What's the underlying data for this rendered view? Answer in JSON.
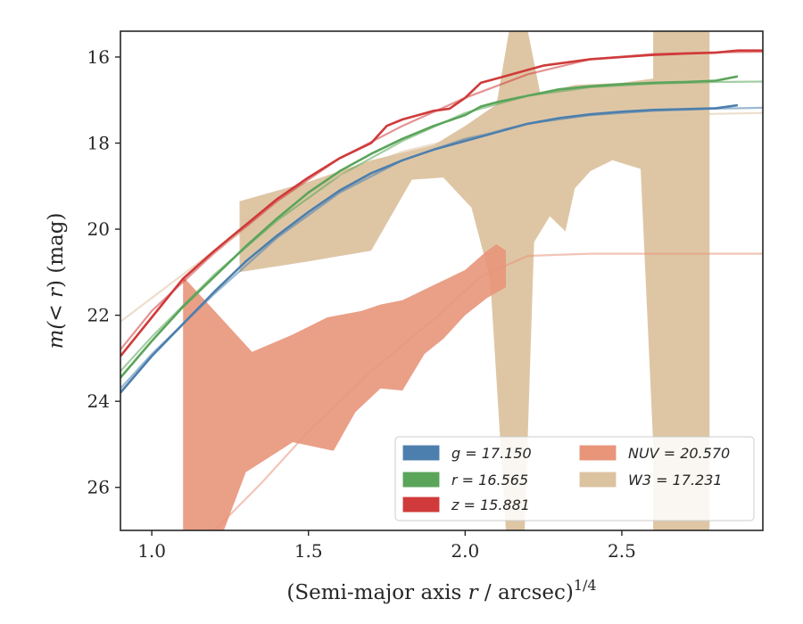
{
  "chart_data": {
    "type": "line",
    "xlabel": "(Semi-major axis r / arcsec)",
    "xlabel_math": "r",
    "xlabel_pre": "(Semi-major axis ",
    "xlabel_post": " / arcsec)",
    "xlabel_sup": "1/4",
    "ylabel_pre": "m(",
    "ylabel_math": "< r",
    "ylabel_post": ") (mag)",
    "xlim": [
      0.9,
      2.95
    ],
    "ylim": [
      27.0,
      15.4
    ],
    "y_inverted": true,
    "x_ticks": [
      "1.0",
      "1.5",
      "2.0",
      "2.5"
    ],
    "x_tick_values": [
      1.0,
      1.5,
      2.0,
      2.5
    ],
    "y_ticks": [
      "16",
      "18",
      "20",
      "22",
      "24",
      "26"
    ],
    "y_tick_values": [
      16,
      18,
      20,
      22,
      24,
      26
    ],
    "grid": false,
    "legend_position": "lower-right",
    "legend": [
      {
        "band": "g",
        "label": "g = 17.150",
        "color": "#4c7fad"
      },
      {
        "band": "r",
        "label": "r = 16.565",
        "color": "#5aa55a"
      },
      {
        "band": "z",
        "label": "z = 15.881",
        "color": "#d03a3a"
      },
      {
        "band": "NUV",
        "label": "NUV = 20.570",
        "color": "#e8957a"
      },
      {
        "band": "W3",
        "label": "W3 = 17.231",
        "color": "#dcc3a0"
      }
    ],
    "series": [
      {
        "name": "g = 17.150",
        "band": "g",
        "color": "#4c7fad",
        "observed": [
          [
            0.9,
            23.8
          ],
          [
            1.0,
            22.95
          ],
          [
            1.1,
            22.2
          ],
          [
            1.2,
            21.45
          ],
          [
            1.3,
            20.75
          ],
          [
            1.4,
            20.15
          ],
          [
            1.5,
            19.6
          ],
          [
            1.6,
            19.1
          ],
          [
            1.7,
            18.7
          ],
          [
            1.8,
            18.4
          ],
          [
            1.9,
            18.15
          ],
          [
            2.0,
            17.95
          ],
          [
            2.1,
            17.75
          ],
          [
            2.2,
            17.55
          ],
          [
            2.3,
            17.42
          ],
          [
            2.4,
            17.33
          ],
          [
            2.5,
            17.27
          ],
          [
            2.6,
            17.23
          ],
          [
            2.7,
            17.21
          ],
          [
            2.8,
            17.19
          ],
          [
            2.87,
            17.12
          ]
        ],
        "model": [
          [
            0.9,
            23.7
          ],
          [
            1.0,
            22.9
          ],
          [
            1.2,
            21.5
          ],
          [
            1.4,
            20.2
          ],
          [
            1.6,
            19.15
          ],
          [
            1.8,
            18.4
          ],
          [
            2.0,
            17.9
          ],
          [
            2.2,
            17.55
          ],
          [
            2.4,
            17.35
          ],
          [
            2.6,
            17.25
          ],
          [
            2.8,
            17.2
          ],
          [
            2.95,
            17.18
          ]
        ]
      },
      {
        "name": "r = 16.565",
        "band": "r",
        "color": "#5aa55a",
        "observed": [
          [
            0.9,
            23.45
          ],
          [
            1.0,
            22.6
          ],
          [
            1.1,
            21.8
          ],
          [
            1.2,
            21.1
          ],
          [
            1.3,
            20.4
          ],
          [
            1.4,
            19.75
          ],
          [
            1.5,
            19.15
          ],
          [
            1.6,
            18.65
          ],
          [
            1.7,
            18.25
          ],
          [
            1.8,
            17.9
          ],
          [
            1.9,
            17.6
          ],
          [
            2.0,
            17.35
          ],
          [
            2.05,
            17.15
          ],
          [
            2.1,
            17.05
          ],
          [
            2.2,
            16.9
          ],
          [
            2.3,
            16.75
          ],
          [
            2.4,
            16.68
          ],
          [
            2.5,
            16.63
          ],
          [
            2.6,
            16.6
          ],
          [
            2.7,
            16.58
          ],
          [
            2.8,
            16.55
          ],
          [
            2.87,
            16.45
          ]
        ],
        "model": [
          [
            0.9,
            23.3
          ],
          [
            1.0,
            22.5
          ],
          [
            1.2,
            21.05
          ],
          [
            1.4,
            19.8
          ],
          [
            1.6,
            18.75
          ],
          [
            1.8,
            17.95
          ],
          [
            2.0,
            17.3
          ],
          [
            2.2,
            16.9
          ],
          [
            2.4,
            16.7
          ],
          [
            2.6,
            16.62
          ],
          [
            2.8,
            16.58
          ],
          [
            2.95,
            16.57
          ]
        ]
      },
      {
        "name": "z = 15.881",
        "band": "z",
        "color": "#d03a3a",
        "observed": [
          [
            0.9,
            22.95
          ],
          [
            1.0,
            22.05
          ],
          [
            1.1,
            21.15
          ],
          [
            1.2,
            20.5
          ],
          [
            1.3,
            19.9
          ],
          [
            1.4,
            19.3
          ],
          [
            1.5,
            18.8
          ],
          [
            1.6,
            18.35
          ],
          [
            1.7,
            18.0
          ],
          [
            1.75,
            17.6
          ],
          [
            1.8,
            17.45
          ],
          [
            1.9,
            17.25
          ],
          [
            1.95,
            17.2
          ],
          [
            2.0,
            16.95
          ],
          [
            2.05,
            16.6
          ],
          [
            2.1,
            16.5
          ],
          [
            2.2,
            16.3
          ],
          [
            2.25,
            16.2
          ],
          [
            2.3,
            16.15
          ],
          [
            2.4,
            16.05
          ],
          [
            2.5,
            16.0
          ],
          [
            2.6,
            15.95
          ],
          [
            2.7,
            15.92
          ],
          [
            2.8,
            15.9
          ],
          [
            2.87,
            15.85
          ],
          [
            2.95,
            15.85
          ]
        ],
        "model": [
          [
            0.9,
            22.8
          ],
          [
            1.0,
            21.9
          ],
          [
            1.2,
            20.55
          ],
          [
            1.4,
            19.35
          ],
          [
            1.6,
            18.35
          ],
          [
            1.8,
            17.6
          ],
          [
            2.0,
            16.95
          ],
          [
            2.2,
            16.4
          ],
          [
            2.4,
            16.05
          ],
          [
            2.6,
            15.93
          ],
          [
            2.8,
            15.89
          ],
          [
            2.95,
            15.88
          ]
        ]
      },
      {
        "name": "NUV = 20.570",
        "band": "NUV",
        "color": "#e8957a",
        "band_upper": [
          [
            1.1,
            21.1
          ],
          [
            1.32,
            22.85
          ],
          [
            1.45,
            22.45
          ],
          [
            1.56,
            22.05
          ],
          [
            1.67,
            21.9
          ],
          [
            1.73,
            21.75
          ],
          [
            1.8,
            21.65
          ],
          [
            1.9,
            21.3
          ],
          [
            2.0,
            20.95
          ],
          [
            2.07,
            20.5
          ],
          [
            2.1,
            20.35
          ],
          [
            2.13,
            20.5
          ]
        ],
        "band_lower": [
          [
            2.13,
            21.35
          ],
          [
            2.07,
            21.6
          ],
          [
            2.0,
            22.0
          ],
          [
            1.93,
            22.55
          ],
          [
            1.87,
            22.9
          ],
          [
            1.8,
            23.75
          ],
          [
            1.73,
            23.7
          ],
          [
            1.65,
            24.25
          ],
          [
            1.58,
            25.15
          ],
          [
            1.45,
            24.95
          ],
          [
            1.3,
            25.65
          ],
          [
            1.23,
            27.0
          ],
          [
            1.1,
            27.0
          ]
        ],
        "model": [
          [
            1.2,
            27.0
          ],
          [
            1.35,
            25.9
          ],
          [
            1.5,
            24.7
          ],
          [
            1.7,
            23.3
          ],
          [
            1.9,
            22.1
          ],
          [
            2.05,
            21.1
          ],
          [
            2.2,
            20.62
          ],
          [
            2.4,
            20.57
          ],
          [
            2.95,
            20.57
          ]
        ]
      },
      {
        "name": "W3 = 17.231",
        "band": "W3",
        "color": "#dcc3a0",
        "band_upper": [
          [
            1.28,
            19.35
          ],
          [
            1.5,
            18.9
          ],
          [
            1.7,
            18.4
          ],
          [
            1.9,
            18.05
          ],
          [
            2.0,
            17.6
          ],
          [
            2.1,
            17.1
          ],
          [
            2.14,
            15.4
          ],
          [
            2.2,
            15.4
          ],
          [
            2.24,
            16.85
          ],
          [
            2.35,
            16.65
          ],
          [
            2.5,
            16.6
          ],
          [
            2.6,
            16.5
          ],
          [
            2.6,
            15.4
          ],
          [
            2.78,
            15.4
          ],
          [
            2.78,
            27.0
          ]
        ],
        "band_lower": [
          [
            2.6,
            27.0
          ],
          [
            2.6,
            25.0
          ],
          [
            2.56,
            18.6
          ],
          [
            2.47,
            18.4
          ],
          [
            2.4,
            18.65
          ],
          [
            2.35,
            19.05
          ],
          [
            2.32,
            20.05
          ],
          [
            2.27,
            19.7
          ],
          [
            2.22,
            20.3
          ],
          [
            2.19,
            27.0
          ],
          [
            2.13,
            27.0
          ],
          [
            2.08,
            21.15
          ],
          [
            2.02,
            19.5
          ],
          [
            1.93,
            18.8
          ],
          [
            1.83,
            18.85
          ],
          [
            1.7,
            20.5
          ],
          [
            1.5,
            20.75
          ],
          [
            1.28,
            21.0
          ]
        ],
        "model": [
          [
            0.9,
            22.15
          ],
          [
            1.0,
            21.6
          ],
          [
            1.2,
            20.5
          ],
          [
            1.4,
            19.5
          ],
          [
            1.6,
            18.75
          ],
          [
            1.8,
            18.2
          ],
          [
            2.0,
            17.85
          ],
          [
            2.2,
            17.6
          ],
          [
            2.4,
            17.45
          ],
          [
            2.6,
            17.37
          ],
          [
            2.8,
            17.32
          ],
          [
            2.95,
            17.3
          ]
        ]
      }
    ]
  }
}
